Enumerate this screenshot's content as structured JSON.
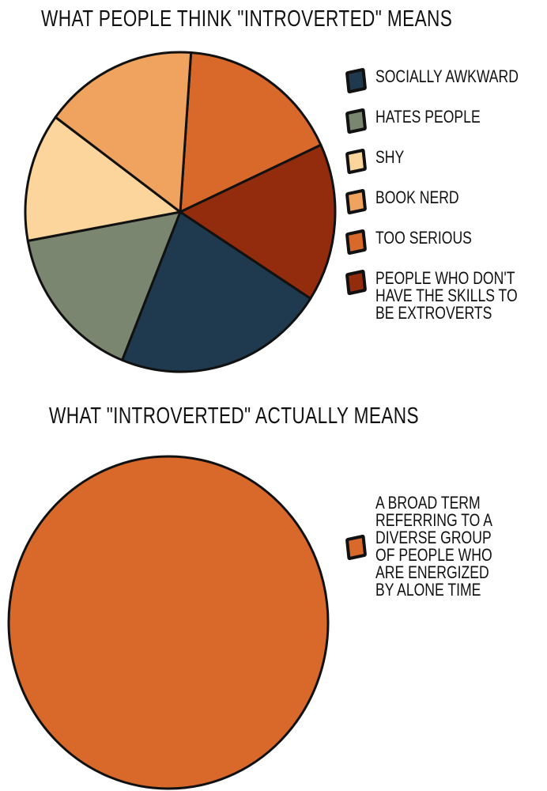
{
  "chart_data": [
    {
      "type": "pie",
      "title": "WHAT PEOPLE THINK \"INTROVERTED\" MEANS",
      "legend_position": "right",
      "slices": [
        {
          "label": "SOCIALLY AWKWARD",
          "value": 22,
          "color": "#1f3a4e"
        },
        {
          "label": "HATES PEOPLE",
          "value": 16,
          "color": "#7b8670"
        },
        {
          "label": "SHY",
          "value": 13,
          "color": "#fbd59c"
        },
        {
          "label": "BOOK NERD",
          "value": 16,
          "color": "#efa35f"
        },
        {
          "label": "TOO SERIOUS",
          "value": 17,
          "color": "#d8692b"
        },
        {
          "label": "PEOPLE WHO DON'T HAVE THE SKILLS TO BE EXTROVERTS",
          "value": 16,
          "color": "#922c0c"
        }
      ]
    },
    {
      "type": "pie",
      "title": "WHAT \"INTROVERTED\" ACTUALLY MEANS",
      "legend_position": "right",
      "slices": [
        {
          "label": "A BROAD TERM REFERRING TO A DIVERSE GROUP OF PEOPLE WHO ARE ENERGIZED BY ALONE TIME",
          "value": 100,
          "color": "#d8692b"
        }
      ]
    }
  ]
}
